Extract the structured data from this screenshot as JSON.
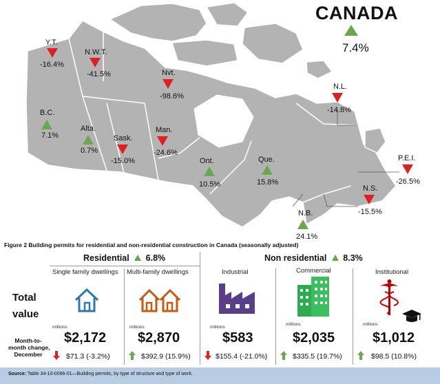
{
  "map": {
    "country": "CANADA",
    "country_change": "7.4%",
    "country_direction": "up",
    "regions": [
      {
        "name": "Y.T.",
        "value": "-16.4%",
        "direction": "down"
      },
      {
        "name": "N.W.T.",
        "value": "-41.5%",
        "direction": "down"
      },
      {
        "name": "Nvt.",
        "value": "-98.6%",
        "direction": "down"
      },
      {
        "name": "B.C.",
        "value": "7.1%",
        "direction": "up"
      },
      {
        "name": "Alta.",
        "value": "0.7%",
        "direction": "up"
      },
      {
        "name": "Sask.",
        "value": "-15.0%",
        "direction": "down"
      },
      {
        "name": "Man.",
        "value": "-24.6%",
        "direction": "down"
      },
      {
        "name": "Ont.",
        "value": "10.5%",
        "direction": "up"
      },
      {
        "name": "Que.",
        "value": "15.8%",
        "direction": "up"
      },
      {
        "name": "N.L.",
        "value": "-14.8%",
        "direction": "down"
      },
      {
        "name": "P.E.I.",
        "value": "-26.5%",
        "direction": "down"
      },
      {
        "name": "N.S.",
        "value": "-15.5%",
        "direction": "down"
      },
      {
        "name": "N.B.",
        "value": "24.1%",
        "direction": "up"
      }
    ],
    "colors": {
      "land": "#b3b3b3",
      "border": "#ffffff",
      "up": "#6aa84f",
      "down": "#e02020"
    }
  },
  "figure_caption": "Figure 2  Building permits for residential and non-residential construction in Canada (seasonally adjusted)",
  "panel": {
    "row_labels": {
      "total_line1": "Total",
      "total_line2": "value",
      "change_line1": "Month-to-",
      "change_line2": "month change,",
      "change_line3": "December"
    },
    "residential": {
      "label": "Residential",
      "change": "6.8%",
      "direction": "up"
    },
    "non_residential": {
      "label": "Non residential",
      "change": "8.3%",
      "direction": "up"
    },
    "categories": [
      {
        "name": "Single family dwellings",
        "icon": "house-icon",
        "units": "millions",
        "value": "$2,172",
        "change": "$71.3 (-3.2%)",
        "direction": "down"
      },
      {
        "name": "Multi-family dwellings",
        "icon": "two-houses-icon",
        "units": "millions",
        "value": "$2,870",
        "change": "$392.9 (15.9%)",
        "direction": "up"
      },
      {
        "name": "Industrial",
        "icon": "factory-icon",
        "units": "millions",
        "value": "$583",
        "change": "$155.4 (-21.0%)",
        "direction": "down"
      },
      {
        "name": "Commercial",
        "icon": "building-icon",
        "units": "millions",
        "value": "$2,035",
        "change": "$335.5 (19.7%)",
        "direction": "up"
      },
      {
        "name": "Institutional",
        "icon": "caduceus-graduation-cap-icon",
        "units": "millions",
        "value": "$1,012",
        "change": "$98.5 (10.8%)",
        "direction": "up"
      }
    ]
  },
  "source": {
    "label": "Source:",
    "text": " Table 34-10-0066-01—Building permits, by type of structure and type of work."
  }
}
